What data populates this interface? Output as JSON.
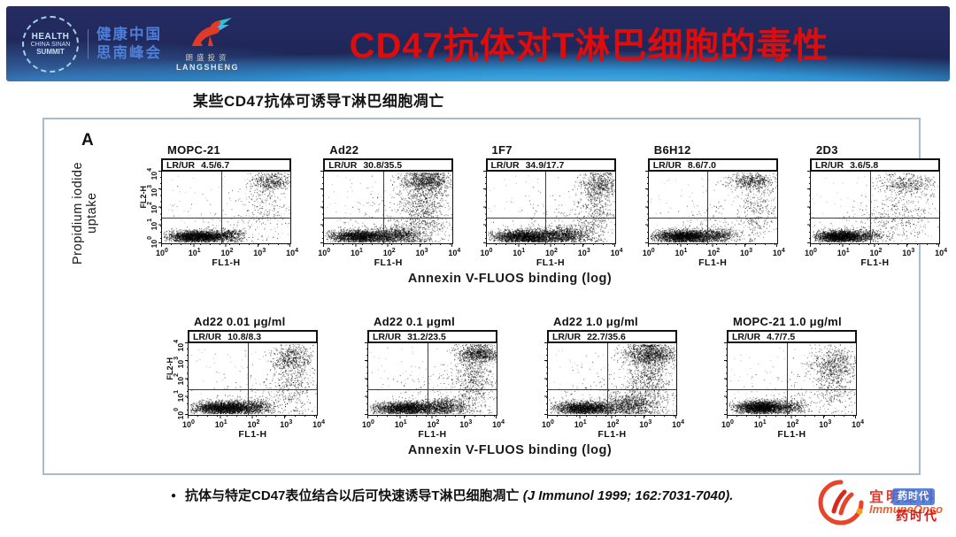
{
  "banner": {
    "summit_logo": {
      "line1": "HEALTH",
      "line2": "CHINA SINAN",
      "line3": "SUMMIT"
    },
    "summit_cn": {
      "line1": "健康中国",
      "line2": "思南峰会"
    },
    "langsheng": {
      "cn": "朗盛投资",
      "en": "LANGSHENG"
    },
    "title": "CD47抗体对T淋巴细胞的毒性",
    "title_color": "#dd0d0d",
    "bg_color": "#1e2557"
  },
  "subtitle": "某些CD47抗体可诱导T淋巴细胞凋亡",
  "figure": {
    "panel_label": "A"
  },
  "chart_data": {
    "type": "scatter",
    "subtype": "flow-cytometry-dot-plot-grid",
    "gate_label": "LR/UR",
    "x_axis": {
      "label": "FL1-H",
      "group_label": "Annexin V-FLUOS binding (log)",
      "scale": "log",
      "range": [
        1,
        10000
      ],
      "tick_exponents": [
        "0",
        "1",
        "2",
        "3",
        "4"
      ]
    },
    "y_axis": {
      "label": "FL2-H",
      "group_label": "Propidium iodide uptake",
      "scale": "log",
      "range": [
        1,
        10000
      ],
      "tick_exponents": [
        "0",
        "1",
        "2",
        "3",
        "4"
      ]
    },
    "quadrant": {
      "x_frac": 0.46,
      "y_frac_from_bottom": 0.34
    },
    "panels": [
      {
        "row": 1,
        "title": "MOPC-21",
        "lr": 4.5,
        "ur": 6.7,
        "lr_ur": "4.5/6.7",
        "show_y_axis": true,
        "clusters": [
          [
            0.27,
            0.1,
            0.11,
            0.04,
            2300
          ],
          [
            0.5,
            0.11,
            0.07,
            0.045,
            500
          ],
          [
            0.85,
            0.86,
            0.08,
            0.06,
            420
          ],
          [
            0.82,
            0.55,
            0.1,
            0.2,
            200
          ],
          [
            0.6,
            0.3,
            0.25,
            0.22,
            120
          ]
        ]
      },
      {
        "row": 1,
        "title": "Ad22",
        "lr": 30.8,
        "ur": 35.5,
        "lr_ur": "30.8/35.5",
        "show_y_axis": false,
        "clusters": [
          [
            0.28,
            0.1,
            0.12,
            0.045,
            2100
          ],
          [
            0.58,
            0.12,
            0.09,
            0.06,
            800
          ],
          [
            0.8,
            0.87,
            0.1,
            0.07,
            850
          ],
          [
            0.78,
            0.5,
            0.09,
            0.26,
            850
          ],
          [
            0.55,
            0.35,
            0.22,
            0.22,
            200
          ]
        ]
      },
      {
        "row": 1,
        "title": "1F7",
        "lr": 34.9,
        "ur": 17.7,
        "lr_ur": "34.9/17.7",
        "show_y_axis": false,
        "clusters": [
          [
            0.3,
            0.1,
            0.13,
            0.045,
            2300
          ],
          [
            0.62,
            0.12,
            0.1,
            0.06,
            900
          ],
          [
            0.88,
            0.82,
            0.07,
            0.1,
            500
          ],
          [
            0.85,
            0.45,
            0.07,
            0.24,
            420
          ],
          [
            0.55,
            0.3,
            0.22,
            0.2,
            160
          ]
        ]
      },
      {
        "row": 1,
        "title": "B6H12",
        "lr": 8.6,
        "ur": 7.0,
        "lr_ur": "8.6/7.0",
        "show_y_axis": false,
        "clusters": [
          [
            0.28,
            0.1,
            0.12,
            0.045,
            2400
          ],
          [
            0.55,
            0.12,
            0.08,
            0.05,
            450
          ],
          [
            0.8,
            0.87,
            0.09,
            0.055,
            500
          ],
          [
            0.84,
            0.5,
            0.08,
            0.22,
            300
          ],
          [
            0.6,
            0.3,
            0.22,
            0.2,
            130
          ]
        ]
      },
      {
        "row": 1,
        "title": "2D3",
        "lr": 3.6,
        "ur": 5.8,
        "lr_ur": "3.6/5.8",
        "show_y_axis": false,
        "clusters": [
          [
            0.22,
            0.1,
            0.09,
            0.04,
            2100
          ],
          [
            0.42,
            0.11,
            0.08,
            0.045,
            400
          ],
          [
            0.76,
            0.84,
            0.11,
            0.07,
            400
          ],
          [
            0.7,
            0.45,
            0.14,
            0.2,
            280
          ],
          [
            0.5,
            0.25,
            0.2,
            0.16,
            140
          ]
        ]
      },
      {
        "row": 2,
        "title": "Ad22 0.01 μg/ml",
        "lr": 10.8,
        "ur": 8.3,
        "lr_ur": "10.8/8.3",
        "show_y_axis": true,
        "clusters": [
          [
            0.28,
            0.1,
            0.12,
            0.045,
            2300
          ],
          [
            0.52,
            0.12,
            0.08,
            0.05,
            450
          ],
          [
            0.8,
            0.8,
            0.08,
            0.09,
            450
          ],
          [
            0.8,
            0.45,
            0.08,
            0.24,
            400
          ],
          [
            0.55,
            0.28,
            0.22,
            0.18,
            150
          ]
        ]
      },
      {
        "row": 2,
        "title": "Ad22 0.1 μgml",
        "lr": 31.2,
        "ur": 23.5,
        "lr_ur": "31.2/23.5",
        "show_y_axis": false,
        "clusters": [
          [
            0.3,
            0.1,
            0.13,
            0.045,
            2200
          ],
          [
            0.6,
            0.12,
            0.09,
            0.06,
            700
          ],
          [
            0.86,
            0.86,
            0.08,
            0.06,
            800
          ],
          [
            0.82,
            0.5,
            0.08,
            0.26,
            650
          ],
          [
            0.55,
            0.3,
            0.22,
            0.2,
            170
          ]
        ]
      },
      {
        "row": 2,
        "title": "Ad22 1.0 μg/ml",
        "lr": 22.7,
        "ur": 35.6,
        "lr_ur": "22.7/35.6",
        "show_y_axis": false,
        "clusters": [
          [
            0.28,
            0.1,
            0.12,
            0.045,
            2000
          ],
          [
            0.62,
            0.14,
            0.1,
            0.07,
            800
          ],
          [
            0.8,
            0.85,
            0.11,
            0.075,
            1000
          ],
          [
            0.78,
            0.5,
            0.09,
            0.28,
            950
          ],
          [
            0.55,
            0.32,
            0.22,
            0.22,
            200
          ]
        ]
      },
      {
        "row": 2,
        "title": "MOPC-21 1.0 μg/ml",
        "lr": 4.7,
        "ur": 7.5,
        "lr_ur": "4.7/7.5",
        "show_y_axis": false,
        "clusters": [
          [
            0.26,
            0.11,
            0.1,
            0.045,
            2200
          ],
          [
            0.48,
            0.12,
            0.07,
            0.05,
            400
          ],
          [
            0.82,
            0.72,
            0.09,
            0.11,
            550
          ],
          [
            0.84,
            0.42,
            0.07,
            0.18,
            280
          ],
          [
            0.6,
            0.28,
            0.2,
            0.16,
            140
          ]
        ]
      }
    ]
  },
  "footer": {
    "bullet": "抗体与特定CD47表位结合以后可快速诱导T淋巴细胞凋亡",
    "citation": "(J Immunol 1999; 162:7031-7040)."
  },
  "watermark": {
    "company_cn": "宜明昂科",
    "company_en": "ImmuneOnco",
    "badge_text": "药时代",
    "overlay_text": "药时代"
  }
}
